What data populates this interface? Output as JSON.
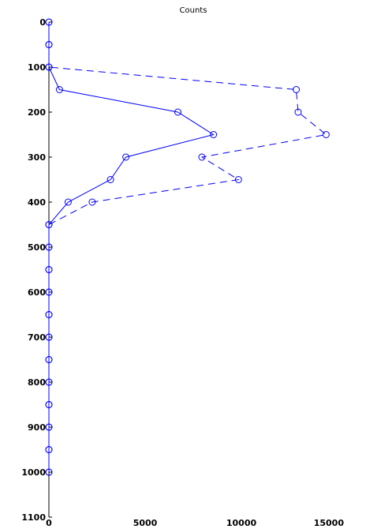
{
  "chart_data": {
    "type": "line",
    "title": "Counts",
    "xlabel": "",
    "ylabel": "",
    "xlim": [
      0,
      15000
    ],
    "ylim": [
      0,
      1100
    ],
    "y_inverted": true,
    "x_ticks": [
      0,
      5000,
      10000,
      15000
    ],
    "y_ticks": [
      0,
      100,
      200,
      300,
      400,
      500,
      600,
      700,
      800,
      900,
      1000,
      1100
    ],
    "grid": false,
    "colors": {
      "series": "#0000ff",
      "axis": "#000000"
    },
    "series": [
      {
        "line_style": "solid",
        "marker": "circle",
        "points": [
          {
            "x": 0,
            "y": 0
          },
          {
            "x": 0,
            "y": 50
          },
          {
            "x": 0,
            "y": 100
          },
          {
            "x": 550,
            "y": 150
          },
          {
            "x": 6700,
            "y": 200
          },
          {
            "x": 8550,
            "y": 250
          },
          {
            "x": 4000,
            "y": 300
          },
          {
            "x": 3200,
            "y": 350
          },
          {
            "x": 1000,
            "y": 400
          },
          {
            "x": 0,
            "y": 450
          },
          {
            "x": 0,
            "y": 500
          },
          {
            "x": 0,
            "y": 550
          },
          {
            "x": 0,
            "y": 600
          },
          {
            "x": 0,
            "y": 650
          },
          {
            "x": 0,
            "y": 700
          },
          {
            "x": 0,
            "y": 750
          },
          {
            "x": 0,
            "y": 800
          },
          {
            "x": 0,
            "y": 850
          },
          {
            "x": 0,
            "y": 900
          },
          {
            "x": 0,
            "y": 950
          },
          {
            "x": 0,
            "y": 1000
          }
        ]
      },
      {
        "line_style": "dashed",
        "marker": "circle",
        "points": [
          {
            "x": 0,
            "y": 0
          },
          {
            "x": 0,
            "y": 50
          },
          {
            "x": 0,
            "y": 100
          },
          {
            "x": 12850,
            "y": 150
          },
          {
            "x": 12950,
            "y": 200
          },
          {
            "x": 14400,
            "y": 250
          },
          {
            "x": 7950,
            "y": 300
          },
          {
            "x": 9850,
            "y": 350
          },
          {
            "x": 2250,
            "y": 400
          },
          {
            "x": 0,
            "y": 450
          },
          {
            "x": 0,
            "y": 500
          },
          {
            "x": 0,
            "y": 550
          },
          {
            "x": 0,
            "y": 600
          },
          {
            "x": 0,
            "y": 650
          },
          {
            "x": 0,
            "y": 700
          },
          {
            "x": 0,
            "y": 750
          },
          {
            "x": 0,
            "y": 800
          },
          {
            "x": 0,
            "y": 850
          },
          {
            "x": 0,
            "y": 900
          },
          {
            "x": 0,
            "y": 950
          },
          {
            "x": 0,
            "y": 1000
          }
        ]
      }
    ]
  }
}
